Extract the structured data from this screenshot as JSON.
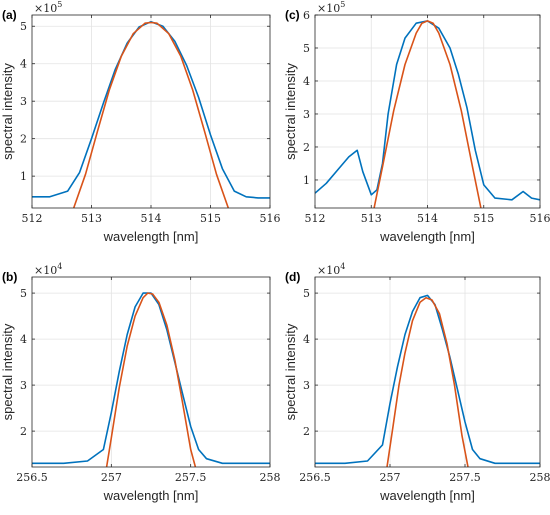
{
  "chart_data": [
    {
      "panel": "(a)",
      "type": "line",
      "exponent": {
        "base": "×10",
        "power": "5"
      },
      "xlabel": "wavelength [nm]",
      "ylabel": "spectral intensity",
      "xlim": [
        512,
        516
      ],
      "ylim": [
        0.15,
        5.3
      ],
      "xticks": [
        512,
        513,
        514,
        515,
        516
      ],
      "yticks": [
        1,
        2,
        3,
        4,
        5
      ],
      "grid": true,
      "series": [
        {
          "color": "#0072BD",
          "x": [
            512.0,
            512.3,
            512.6,
            512.8,
            513.0,
            513.2,
            513.4,
            513.6,
            513.8,
            514.0,
            514.2,
            514.4,
            514.6,
            514.8,
            515.0,
            515.2,
            515.4,
            515.6,
            515.8,
            516.0
          ],
          "y": [
            0.45,
            0.45,
            0.6,
            1.1,
            2.0,
            2.95,
            3.85,
            4.55,
            4.98,
            5.12,
            5.0,
            4.6,
            3.95,
            3.1,
            2.1,
            1.2,
            0.6,
            0.45,
            0.42,
            0.42
          ]
        },
        {
          "color": "#D95319",
          "x": [
            512.7,
            512.9,
            513.1,
            513.3,
            513.5,
            513.7,
            513.9,
            514.0,
            514.1,
            514.3,
            514.5,
            514.7,
            514.9,
            515.1,
            515.3
          ],
          "y": [
            0.15,
            1.05,
            2.2,
            3.3,
            4.2,
            4.8,
            5.08,
            5.1,
            5.08,
            4.8,
            4.2,
            3.3,
            2.2,
            1.05,
            0.15
          ]
        }
      ]
    },
    {
      "panel": "(c)",
      "type": "line",
      "exponent": {
        "base": "×10",
        "power": "5"
      },
      "xlabel": "wavelength [nm]",
      "ylabel": "spectral intensity",
      "xlim": [
        512,
        516
      ],
      "ylim": [
        0.15,
        6.0
      ],
      "xticks": [
        512,
        513,
        514,
        515,
        516
      ],
      "yticks": [
        1,
        2,
        3,
        4,
        5,
        6
      ],
      "grid": true,
      "series": [
        {
          "color": "#0072BD",
          "x": [
            512.0,
            512.2,
            512.4,
            512.6,
            512.75,
            512.85,
            513.0,
            513.1,
            513.2,
            513.3,
            513.45,
            513.6,
            513.8,
            514.0,
            514.2,
            514.4,
            514.55,
            514.7,
            514.85,
            515.0,
            515.2,
            515.5,
            515.7,
            515.85,
            516.0
          ],
          "y": [
            0.6,
            0.9,
            1.3,
            1.7,
            1.9,
            1.25,
            0.55,
            0.7,
            1.5,
            3.0,
            4.5,
            5.3,
            5.75,
            5.82,
            5.6,
            5.0,
            4.2,
            3.2,
            1.9,
            0.85,
            0.45,
            0.4,
            0.65,
            0.45,
            0.4
          ]
        },
        {
          "color": "#D95319",
          "x": [
            513.05,
            513.2,
            513.4,
            513.6,
            513.8,
            513.9,
            514.0,
            514.1,
            514.2,
            514.4,
            514.6,
            514.8,
            514.95
          ],
          "y": [
            0.15,
            1.4,
            3.1,
            4.5,
            5.45,
            5.75,
            5.82,
            5.75,
            5.45,
            4.5,
            3.1,
            1.4,
            0.15
          ]
        }
      ]
    },
    {
      "panel": "(b)",
      "type": "line",
      "exponent": {
        "base": "×10",
        "power": "4"
      },
      "xlabel": "wavelength [nm]",
      "ylabel": "spectral intensity",
      "xlim": [
        256.5,
        258
      ],
      "ylim": [
        1.22,
        5.35
      ],
      "xticks": [
        256.5,
        257,
        257.5,
        258
      ],
      "yticks": [
        2,
        3,
        4,
        5
      ],
      "grid": true,
      "series": [
        {
          "color": "#0072BD",
          "x": [
            256.5,
            256.7,
            256.85,
            256.95,
            257.0,
            257.05,
            257.1,
            257.15,
            257.2,
            257.25,
            257.3,
            257.35,
            257.4,
            257.45,
            257.5,
            257.55,
            257.6,
            257.7,
            257.85,
            258.0
          ],
          "y": [
            1.3,
            1.3,
            1.35,
            1.6,
            2.4,
            3.3,
            4.1,
            4.7,
            5.0,
            5.0,
            4.75,
            4.2,
            3.5,
            2.8,
            2.1,
            1.6,
            1.4,
            1.3,
            1.3,
            1.3
          ]
        },
        {
          "color": "#D95319",
          "x": [
            256.97,
            257.0,
            257.05,
            257.1,
            257.15,
            257.2,
            257.23,
            257.26,
            257.3,
            257.35,
            257.4,
            257.45,
            257.5,
            257.53
          ],
          "y": [
            1.22,
            1.85,
            2.95,
            3.85,
            4.5,
            4.9,
            5.0,
            4.98,
            4.8,
            4.3,
            3.55,
            2.6,
            1.6,
            1.22
          ]
        }
      ]
    },
    {
      "panel": "(d)",
      "type": "line",
      "exponent": {
        "base": "×10",
        "power": "4"
      },
      "xlabel": "wavelength [nm]",
      "ylabel": "spectral intensity",
      "xlim": [
        256.5,
        258
      ],
      "ylim": [
        1.22,
        5.35
      ],
      "xticks": [
        256.5,
        257,
        257.5,
        258
      ],
      "yticks": [
        2,
        3,
        4,
        5
      ],
      "grid": true,
      "series": [
        {
          "color": "#0072BD",
          "x": [
            256.5,
            256.7,
            256.85,
            256.95,
            257.0,
            257.05,
            257.1,
            257.15,
            257.2,
            257.25,
            257.3,
            257.35,
            257.4,
            257.45,
            257.5,
            257.55,
            257.6,
            257.7,
            257.85,
            258.0
          ],
          "y": [
            1.3,
            1.3,
            1.35,
            1.7,
            2.6,
            3.4,
            4.1,
            4.6,
            4.9,
            4.95,
            4.75,
            4.2,
            3.6,
            2.9,
            2.2,
            1.6,
            1.4,
            1.3,
            1.3,
            1.3
          ]
        },
        {
          "color": "#D95319",
          "x": [
            256.98,
            257.02,
            257.06,
            257.1,
            257.15,
            257.2,
            257.24,
            257.28,
            257.33,
            257.38,
            257.43,
            257.48,
            257.52
          ],
          "y": [
            1.22,
            2.1,
            3.0,
            3.7,
            4.4,
            4.8,
            4.9,
            4.85,
            4.55,
            3.9,
            3.0,
            1.9,
            1.22
          ]
        }
      ]
    }
  ]
}
